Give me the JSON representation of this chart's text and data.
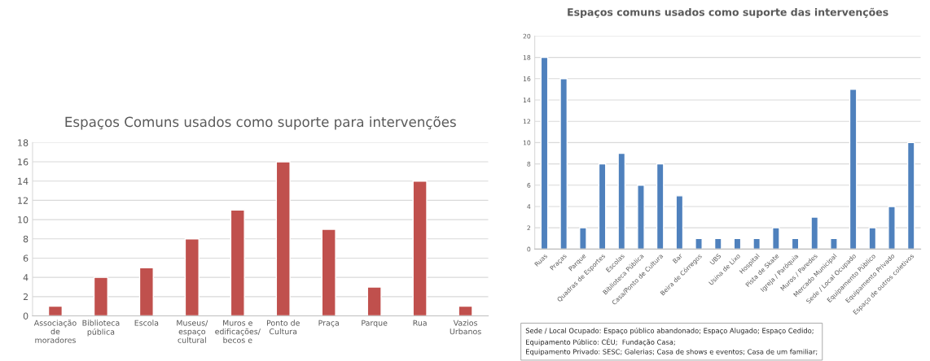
{
  "chart_data": [
    {
      "type": "bar",
      "title": "Espaços Comuns usados como suporte para intervenções",
      "categories": [
        "Associação\nde\nmoradores",
        "Biblioteca\npública",
        "Escola",
        "Museus/\nespaço\ncultural",
        "Muros e\nedificações/\nbecos e",
        "Ponto de\nCultura",
        "Praça",
        "Parque",
        "Rua",
        "Vazios\nUrbanos"
      ],
      "values": [
        1,
        4,
        5,
        8,
        11,
        16,
        9,
        3,
        14,
        1
      ],
      "color": "#c0504d",
      "ylim": [
        0,
        18
      ],
      "yticks": [
        0,
        2,
        4,
        6,
        8,
        10,
        12,
        14,
        16,
        18
      ],
      "grid": "y"
    },
    {
      "type": "bar",
      "title": "Espaços comuns usados como suporte das intervenções",
      "categories": [
        "Ruas",
        "Praças",
        "Parque",
        "Quadras de Esportes",
        "Escolas",
        "Biblioteca Pública",
        "Casa/Ponto de Cultura",
        "Bar",
        "Beira de Córregos",
        "UBS",
        "Usina de Lixo",
        "Hospital",
        "Pista de Skate",
        "Igreja / Paróquia",
        "Muros / Paredes",
        "Mercado Municipal",
        "Sede / Local Ocupado",
        "Equipamento Público",
        "Equipamento Privado",
        "Espaço de outros coletivos"
      ],
      "values": [
        18,
        16,
        2,
        8,
        9,
        6,
        8,
        5,
        1,
        1,
        1,
        1,
        2,
        1,
        3,
        1,
        15,
        2,
        4,
        10
      ],
      "color": "#4f81bd",
      "ylim": [
        0,
        20
      ],
      "yticks": [
        0,
        2,
        4,
        6,
        8,
        10,
        12,
        14,
        16,
        18,
        20
      ],
      "grid": "y",
      "annotations": [
        "Sede / Local Ocupado: Espaço público abandonado; Espaço Alugado; Espaço Cedido;\nEquipamento Público: CÉU;  Fundação Casa;\nEquipamento Privado: SESC; Galerias; Casa de shows e eventos; Casa de um familiar;"
      ]
    }
  ]
}
